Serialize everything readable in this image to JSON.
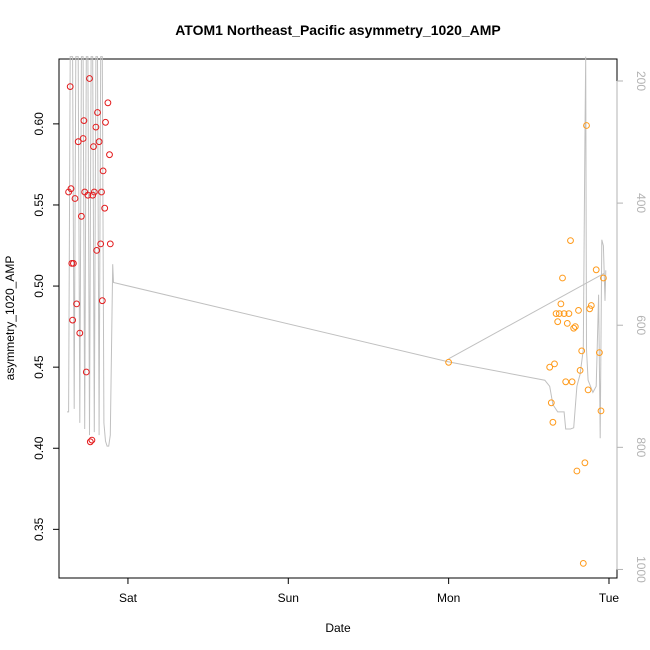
{
  "chart_data": {
    "type": "scatter",
    "title": "ATOM1 Northeast_Pacific asymmetry_1020_AMP",
    "xlabel": "Date",
    "ylabel": "asymmetry_1020_AMP",
    "x_unit": "days",
    "x_ticks": [
      {
        "label": "Sat",
        "value": 0
      },
      {
        "label": "Sun",
        "value": 1
      },
      {
        "label": "Mon",
        "value": 2
      },
      {
        "label": "Tue",
        "value": 3
      }
    ],
    "xlim": [
      -0.43,
      3.05
    ],
    "ylim": [
      0.32,
      0.64
    ],
    "y_ticks": [
      0.35,
      0.4,
      0.45,
      0.5,
      0.55,
      0.6
    ],
    "y_tick_labels": [
      "0.35",
      "0.40",
      "0.45",
      "0.50",
      "0.55",
      "0.60"
    ],
    "y2_ticks": [
      200,
      400,
      600,
      800,
      1000
    ],
    "y2_tick_labels": [
      "200",
      "400",
      "600",
      "800",
      "1000"
    ],
    "y2lim": [
      1014,
      164
    ],
    "y2_inverted": true,
    "grid": false,
    "colors": {
      "series_a": "#e31a1c",
      "series_b": "#ff9a1a",
      "line": "#c0c0c0",
      "axis": "#000000",
      "axis2": "#b3b3b3"
    },
    "series": [
      {
        "marker": "circle-open",
        "color": "#e31a1c",
        "points": [
          {
            "x": -0.37,
            "y": 0.558
          },
          {
            "x": -0.36,
            "y": 0.623
          },
          {
            "x": -0.355,
            "y": 0.56
          },
          {
            "x": -0.35,
            "y": 0.514
          },
          {
            "x": -0.345,
            "y": 0.479
          },
          {
            "x": -0.34,
            "y": 0.514
          },
          {
            "x": -0.33,
            "y": 0.554
          },
          {
            "x": -0.32,
            "y": 0.489
          },
          {
            "x": -0.31,
            "y": 0.589
          },
          {
            "x": -0.3,
            "y": 0.471
          },
          {
            "x": -0.29,
            "y": 0.543
          },
          {
            "x": -0.28,
            "y": 0.591
          },
          {
            "x": -0.275,
            "y": 0.602
          },
          {
            "x": -0.27,
            "y": 0.558
          },
          {
            "x": -0.26,
            "y": 0.447
          },
          {
            "x": -0.25,
            "y": 0.556
          },
          {
            "x": -0.24,
            "y": 0.628
          },
          {
            "x": -0.235,
            "y": 0.404
          },
          {
            "x": -0.225,
            "y": 0.405
          },
          {
            "x": -0.22,
            "y": 0.556
          },
          {
            "x": -0.215,
            "y": 0.586
          },
          {
            "x": -0.21,
            "y": 0.558
          },
          {
            "x": -0.2,
            "y": 0.598
          },
          {
            "x": -0.195,
            "y": 0.522
          },
          {
            "x": -0.19,
            "y": 0.607
          },
          {
            "x": -0.18,
            "y": 0.589
          },
          {
            "x": -0.17,
            "y": 0.526
          },
          {
            "x": -0.165,
            "y": 0.558
          },
          {
            "x": -0.16,
            "y": 0.491
          },
          {
            "x": -0.155,
            "y": 0.571
          },
          {
            "x": -0.145,
            "y": 0.548
          },
          {
            "x": -0.14,
            "y": 0.601
          },
          {
            "x": -0.125,
            "y": 0.613
          },
          {
            "x": -0.115,
            "y": 0.581
          },
          {
            "x": -0.11,
            "y": 0.526
          }
        ]
      },
      {
        "marker": "circle-open",
        "color": "#ff9a1a",
        "points": [
          {
            "x": 2.0,
            "y": 0.453
          },
          {
            "x": 2.63,
            "y": 0.45
          },
          {
            "x": 2.64,
            "y": 0.428
          },
          {
            "x": 2.65,
            "y": 0.416
          },
          {
            "x": 2.66,
            "y": 0.452
          },
          {
            "x": 2.67,
            "y": 0.483
          },
          {
            "x": 2.68,
            "y": 0.478
          },
          {
            "x": 2.69,
            "y": 0.483
          },
          {
            "x": 2.7,
            "y": 0.489
          },
          {
            "x": 2.71,
            "y": 0.505
          },
          {
            "x": 2.72,
            "y": 0.483
          },
          {
            "x": 2.73,
            "y": 0.441
          },
          {
            "x": 2.74,
            "y": 0.477
          },
          {
            "x": 2.75,
            "y": 0.483
          },
          {
            "x": 2.76,
            "y": 0.528
          },
          {
            "x": 2.77,
            "y": 0.441
          },
          {
            "x": 2.78,
            "y": 0.474
          },
          {
            "x": 2.79,
            "y": 0.475
          },
          {
            "x": 2.8,
            "y": 0.386
          },
          {
            "x": 2.81,
            "y": 0.485
          },
          {
            "x": 2.82,
            "y": 0.448
          },
          {
            "x": 2.83,
            "y": 0.46
          },
          {
            "x": 2.84,
            "y": 0.329
          },
          {
            "x": 2.85,
            "y": 0.391
          },
          {
            "x": 2.86,
            "y": 0.599
          },
          {
            "x": 2.87,
            "y": 0.436
          },
          {
            "x": 2.88,
            "y": 0.486
          },
          {
            "x": 2.89,
            "y": 0.488
          },
          {
            "x": 2.92,
            "y": 0.51
          },
          {
            "x": 2.94,
            "y": 0.459
          },
          {
            "x": 2.95,
            "y": 0.423
          },
          {
            "x": 2.965,
            "y": 0.505
          }
        ]
      }
    ],
    "line_series": {
      "axis": "y2",
      "color": "#c0c0c0",
      "segments": [
        [
          [
            -0.38,
            742
          ],
          [
            -0.37,
            742
          ],
          [
            -0.36,
            160
          ],
          [
            -0.345,
            160
          ],
          [
            -0.335,
            737
          ],
          [
            -0.325,
            160
          ],
          [
            -0.31,
            160
          ],
          [
            -0.3,
            760
          ],
          [
            -0.29,
            160
          ],
          [
            -0.28,
            160
          ],
          [
            -0.27,
            770
          ],
          [
            -0.26,
            160
          ],
          [
            -0.25,
            160
          ],
          [
            -0.24,
            780
          ],
          [
            -0.23,
            160
          ],
          [
            -0.22,
            160
          ],
          [
            -0.21,
            775
          ],
          [
            -0.2,
            160
          ],
          [
            -0.19,
            160
          ],
          [
            -0.18,
            780
          ],
          [
            -0.17,
            160
          ],
          [
            -0.16,
            160
          ],
          [
            -0.15,
            760
          ],
          [
            -0.14,
            790
          ],
          [
            -0.13,
            798
          ],
          [
            -0.12,
            798
          ],
          [
            -0.11,
            780
          ],
          [
            -0.095,
            500
          ],
          [
            -0.09,
            530
          ],
          [
            2.0,
            660
          ],
          [
            2.6,
            690
          ],
          [
            2.63,
            700
          ],
          [
            2.65,
            730
          ],
          [
            2.68,
            742
          ],
          [
            2.72,
            742
          ],
          [
            2.73,
            770
          ],
          [
            2.76,
            770
          ],
          [
            2.78,
            768
          ],
          [
            2.8,
            700
          ],
          [
            2.82,
            680
          ],
          [
            2.84,
            640
          ],
          [
            2.85,
            300
          ],
          [
            2.855,
            160
          ],
          [
            2.86,
            640
          ],
          [
            2.87,
            690
          ],
          [
            2.9,
            710
          ],
          [
            2.92,
            700
          ],
          [
            2.935,
            550
          ],
          [
            2.945,
            785
          ],
          [
            2.955,
            460
          ],
          [
            2.965,
            470
          ],
          [
            2.975,
            560
          ],
          [
            2.98,
            510
          ]
        ],
        [
          [
            2.0,
            655
          ],
          [
            2.97,
            515
          ]
        ]
      ]
    }
  }
}
